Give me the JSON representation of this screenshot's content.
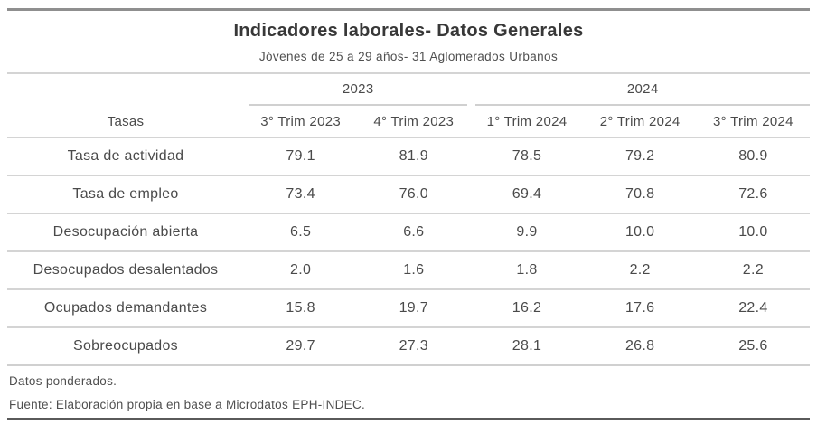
{
  "chart_data": {
    "type": "table",
    "title": "Indicadores laborales- Datos Generales",
    "subtitle": "Jóvenes de 25 a 29 años- 31 Aglomerados Urbanos",
    "row_header": "Tasas",
    "column_groups": [
      {
        "label": "2023",
        "span": 2
      },
      {
        "label": "2024",
        "span": 3
      }
    ],
    "columns": [
      "3° Trim 2023",
      "4° Trim 2023",
      "1° Trim 2024",
      "2° Trim 2024",
      "3° Trim 2024"
    ],
    "rows": [
      {
        "label": "Tasa de actividad",
        "values": [
          "79.1",
          "81.9",
          "78.5",
          "79.2",
          "80.9"
        ]
      },
      {
        "label": "Tasa de empleo",
        "values": [
          "73.4",
          "76.0",
          "69.4",
          "70.8",
          "72.6"
        ]
      },
      {
        "label": "Desocupación abierta",
        "values": [
          "6.5",
          "6.6",
          "9.9",
          "10.0",
          "10.0"
        ]
      },
      {
        "label": "Desocupados desalentados",
        "values": [
          "2.0",
          "1.6",
          "1.8",
          "2.2",
          "2.2"
        ]
      },
      {
        "label": "Ocupados demandantes",
        "values": [
          "15.8",
          "19.7",
          "16.2",
          "17.6",
          "22.4"
        ]
      },
      {
        "label": "Sobreocupados",
        "values": [
          "29.7",
          "27.3",
          "28.1",
          "26.8",
          "25.6"
        ]
      }
    ],
    "notes": [
      "Datos ponderados.",
      "Fuente: Elaboración propia en base a Microdatos EPH-INDEC."
    ],
    "layout_hints": {
      "grid": "horizontal rules only",
      "column_group_underlines": true
    }
  },
  "colors": {
    "rule_top": "#8f8f8f",
    "rule_bottom": "#5a5a5a",
    "rule_light": "#d4d4d4",
    "text": "#4a4a4a",
    "title_text": "#383838",
    "background": "#ffffff"
  }
}
